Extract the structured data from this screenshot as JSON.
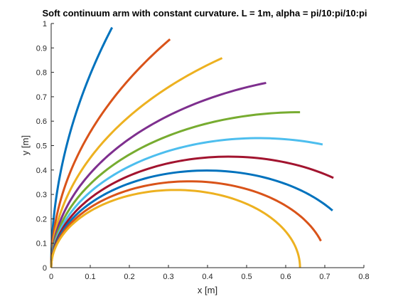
{
  "chart_data": {
    "type": "line",
    "title": "Soft continuum arm with constant curvature. L = 1m, alpha = pi/10:pi/10:pi",
    "xlabel": "x [m]",
    "ylabel": "y [m]",
    "xlim": [
      0,
      0.8
    ],
    "ylim": [
      0,
      1
    ],
    "xticks": [
      "0",
      "0.1",
      "0.2",
      "0.3",
      "0.4",
      "0.5",
      "0.6",
      "0.7",
      "0.8"
    ],
    "yticks": [
      "0",
      "0.1",
      "0.2",
      "0.3",
      "0.4",
      "0.5",
      "0.6",
      "0.7",
      "0.8",
      "0.9",
      "1"
    ],
    "grid": false,
    "length": 1,
    "series": [
      {
        "alpha": 0.3141593,
        "color": "#0072BD"
      },
      {
        "alpha": 0.6283185,
        "color": "#D95319"
      },
      {
        "alpha": 0.9424778,
        "color": "#EDB120"
      },
      {
        "alpha": 1.2566371,
        "color": "#7E2F8E"
      },
      {
        "alpha": 1.5707963,
        "color": "#77AC30"
      },
      {
        "alpha": 1.8849556,
        "color": "#4DBEEE"
      },
      {
        "alpha": 2.1991149,
        "color": "#A2142F"
      },
      {
        "alpha": 2.5132741,
        "color": "#0072BD"
      },
      {
        "alpha": 2.8274334,
        "color": "#D95319"
      },
      {
        "alpha": 3.1415927,
        "color": "#EDB120"
      }
    ]
  }
}
